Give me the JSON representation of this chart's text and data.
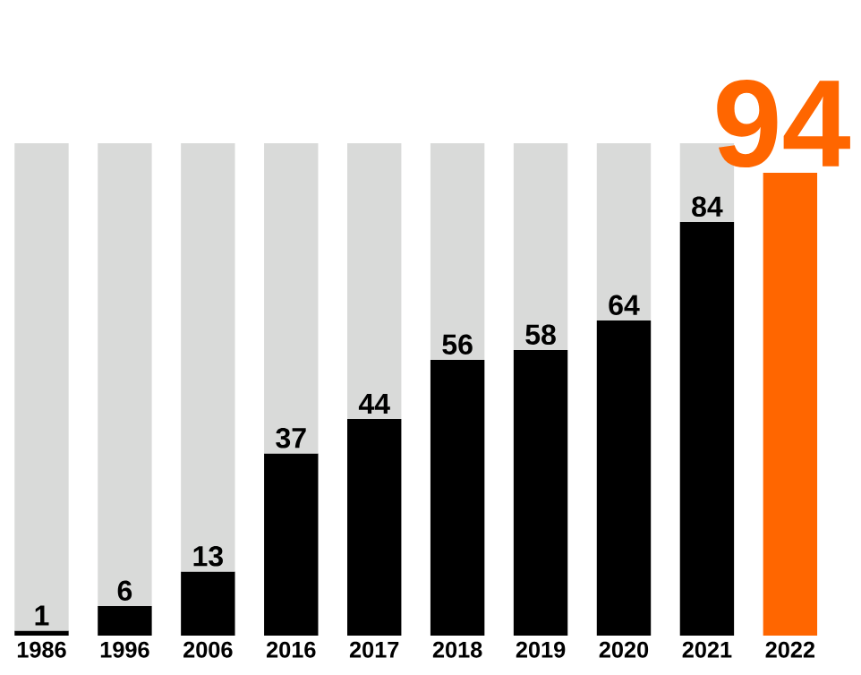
{
  "chart_data": {
    "type": "bar",
    "stacked": true,
    "categories": [
      "1986",
      "1996",
      "2006",
      "2016",
      "2017",
      "2018",
      "2019",
      "2020",
      "2021",
      "2022"
    ],
    "series": [
      {
        "colors": [
          "#000000",
          "#000000",
          "#000000",
          "#000000",
          "#000000",
          "#000000",
          "#000000",
          "#000000",
          "#000000",
          "#ff6600"
        ],
        "values": [
          1,
          6,
          13,
          37,
          44,
          56,
          58,
          64,
          84,
          94
        ],
        "value_labels": [
          "1",
          "6",
          "13",
          "37",
          "44",
          "56",
          "58",
          "64",
          "84",
          "94"
        ]
      },
      {
        "color": "#d9dad9",
        "values": [
          99,
          94,
          87,
          63,
          56,
          44,
          42,
          36,
          16,
          null
        ]
      }
    ]
  }
}
